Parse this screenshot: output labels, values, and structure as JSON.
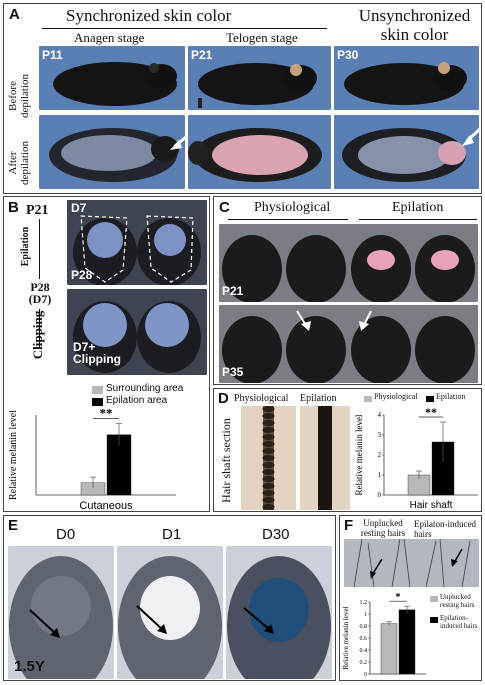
{
  "panelA": {
    "label": "A",
    "sync_title": "Synchronized skin color",
    "unsync_title": "Unsynchronized\nskin color",
    "anagen": "Anagen stage",
    "telogen": "Telogen stage",
    "row_before": "Before\ndepilation",
    "row_after": "After\ndepilation",
    "tags": [
      "P11",
      "P21",
      "P30"
    ]
  },
  "panelB": {
    "label": "B",
    "steps": [
      "P21",
      "Epilation",
      "P28\n(D7)",
      "Clipping"
    ],
    "photo_tags": [
      "D7",
      "P28",
      "D7+\nClipping"
    ],
    "legend": [
      "Surrounding area",
      "Epilation area"
    ],
    "colors": {
      "surrounding": "#b8b8b8",
      "epilation": "#000000"
    }
  },
  "panelC": {
    "label": "C",
    "physiological": "Physiological",
    "epilation": "Epilation",
    "tags": [
      "P21",
      "P35"
    ]
  },
  "panelD": {
    "label": "D",
    "img_labels": [
      "Physiological",
      "Epilation"
    ],
    "side_label": "Hair shaft section",
    "legend": [
      "Physiological",
      "Epilation"
    ]
  },
  "panelE": {
    "label": "E",
    "days": [
      "D0",
      "D1",
      "D30"
    ],
    "age": "1.5Y"
  },
  "panelF": {
    "label": "F",
    "top_left": "Unplucked\nresting hairs",
    "top_right": "Epilaton-induced\nhairs",
    "legend": [
      "Unplucked\nresting hairs",
      "Epilation-\ninduced hairs"
    ]
  },
  "chart_data": [
    {
      "type": "bar",
      "panel": "B",
      "categories": [
        "Cutaneous"
      ],
      "series": [
        {
          "name": "Surrounding area",
          "values": [
            1.0
          ]
        },
        {
          "name": "Epilation area",
          "values": [
            4.9
          ]
        }
      ],
      "error": [
        0.45,
        0.9
      ],
      "ylabel": "Relative melanin level",
      "xlabel": "Cutaneous",
      "significance": "**"
    },
    {
      "type": "bar",
      "panel": "D",
      "categories": [
        "Hair shaft"
      ],
      "series": [
        {
          "name": "Physiological",
          "values": [
            1.0
          ]
        },
        {
          "name": "Epilation",
          "values": [
            2.65
          ]
        }
      ],
      "error": [
        0.2,
        1.0
      ],
      "ylim": [
        0,
        4
      ],
      "yticks": [
        "0",
        "1",
        "2",
        "3",
        "4"
      ],
      "ylabel": "Relative melanin level",
      "xlabel": "Hair shaft",
      "significance": "**"
    },
    {
      "type": "bar",
      "panel": "F",
      "categories": [
        ""
      ],
      "series": [
        {
          "name": "Unplucked resting hairs",
          "values": [
            0.84
          ]
        },
        {
          "name": "Epilation-induced hairs",
          "values": [
            1.07
          ]
        }
      ],
      "error": [
        0.03,
        0.06
      ],
      "ylim": [
        0,
        1.2
      ],
      "yticks": [
        "0",
        "0.2",
        "0.4",
        "0.6",
        "0.8",
        "1",
        "1.2"
      ],
      "ylabel": "Relative melanin level",
      "significance": "*"
    }
  ]
}
